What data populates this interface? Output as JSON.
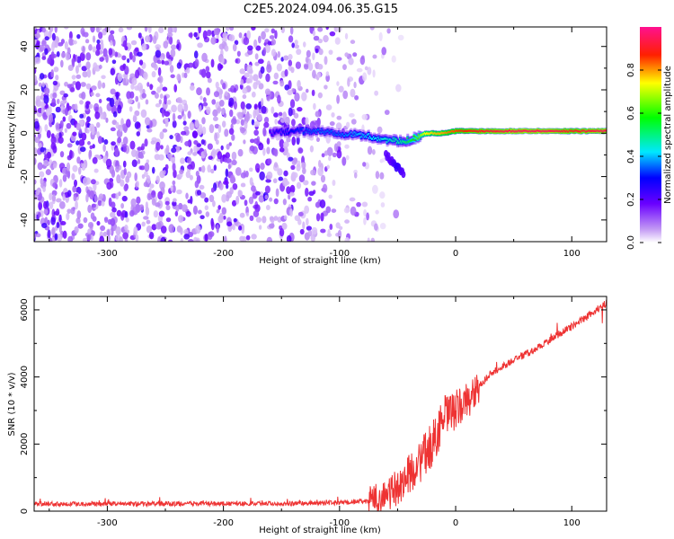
{
  "figure_title": "C2E5.2024.094.06.35.G15",
  "chart_data": [
    {
      "type": "heatmap",
      "xlabel": "Height of straight line (km)",
      "ylabel": "Frequency (Hz)",
      "xlim": [
        -363,
        130
      ],
      "ylim": [
        -50,
        49
      ],
      "xticks": [
        -300,
        -200,
        -100,
        0,
        100
      ],
      "xtick_labels": [
        "-300",
        "-200",
        "-100",
        "0",
        "100"
      ],
      "yticks": [
        -40,
        -20,
        0,
        20,
        40
      ],
      "ytick_labels": [
        "-40",
        "-20",
        "0",
        "20",
        "40"
      ],
      "colorbar": {
        "label": "Normalized spectral amplitude",
        "range": [
          0,
          1
        ],
        "ticks": [
          0.0,
          0.2,
          0.4,
          0.6,
          0.8
        ],
        "tick_labels": [
          "0.0",
          "0.2",
          "0.4",
          "0.6",
          "0.8"
        ],
        "colormap": "rainbow"
      },
      "noise_region_x": [
        -363,
        -75
      ],
      "signal_trace": {
        "x": [
          -160,
          -140,
          -120,
          -100,
          -80,
          -60,
          -45,
          -35,
          -25,
          -10,
          0,
          20,
          50,
          80,
          100,
          130
        ],
        "frequency": [
          0,
          1,
          1,
          0,
          -1,
          -3,
          -4,
          -2,
          0,
          0,
          1,
          1,
          1,
          1,
          1,
          1
        ],
        "amplitude": [
          0.25,
          0.3,
          0.35,
          0.35,
          0.4,
          0.45,
          0.5,
          0.6,
          0.75,
          0.8,
          0.85,
          0.9,
          0.95,
          0.95,
          0.9,
          0.95
        ]
      },
      "branch_trace": {
        "x": [
          -60,
          -55,
          -50,
          -45
        ],
        "frequency": [
          -10,
          -13,
          -16,
          -18
        ],
        "amplitude": [
          0.2,
          0.2,
          0.25,
          0.2
        ]
      }
    },
    {
      "type": "line",
      "xlabel": "Height of straight line (km)",
      "ylabel": "SNR (10 * v/v)",
      "xlim": [
        -363,
        130
      ],
      "ylim": [
        0,
        6400
      ],
      "xticks": [
        -300,
        -200,
        -100,
        0,
        100
      ],
      "xtick_labels": [
        "-300",
        "-200",
        "-100",
        "0",
        "100"
      ],
      "yticks": [
        0,
        2000,
        4000,
        6000
      ],
      "ytick_labels": [
        "0",
        "2000",
        "4000",
        "6000"
      ],
      "color": "#ee3333",
      "series": [
        {
          "x": [
            -363,
            -300,
            -250,
            -200,
            -150,
            -100,
            -75,
            -60,
            -50,
            -40,
            -30,
            -20,
            -15,
            -10,
            0,
            10,
            20,
            30,
            50,
            70,
            85,
            100,
            115,
            130
          ],
          "values": [
            220,
            220,
            220,
            220,
            230,
            250,
            300,
            450,
            700,
            1100,
            1500,
            2000,
            2400,
            2800,
            3000,
            3300,
            3700,
            4100,
            4500,
            4850,
            5200,
            5500,
            5850,
            6200
          ]
        }
      ]
    }
  ]
}
